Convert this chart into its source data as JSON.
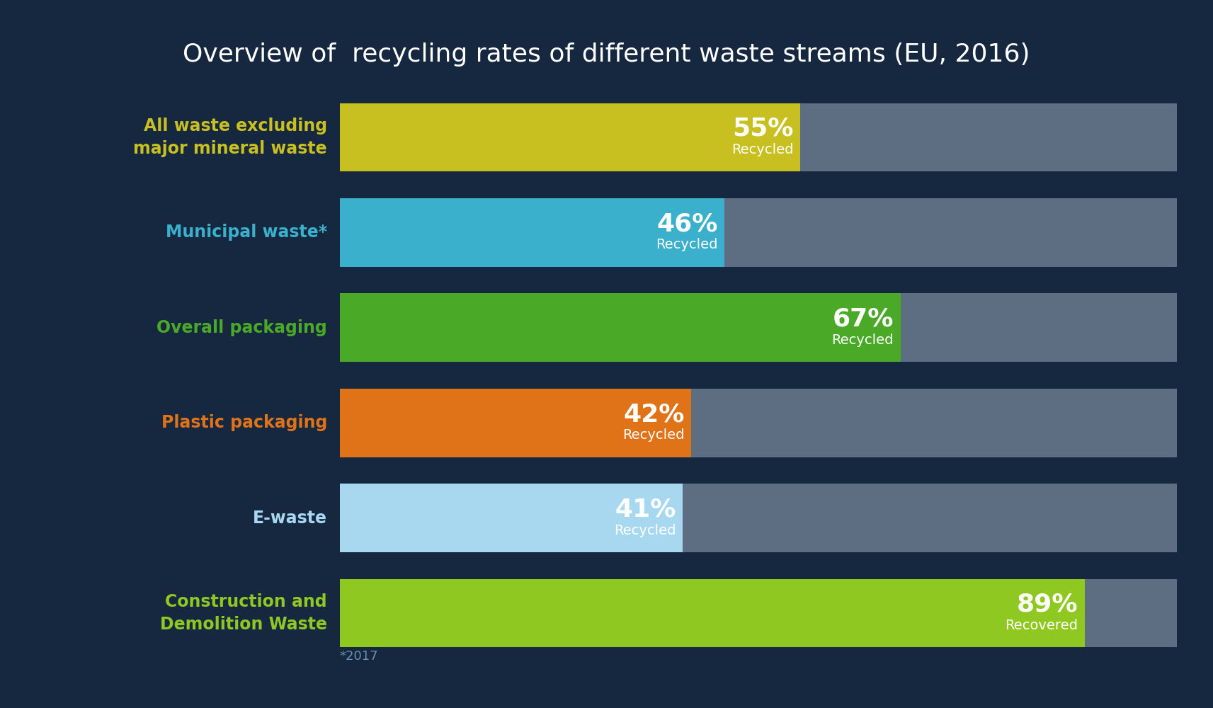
{
  "title": "Overview of  recycling rates of different waste streams (EU, 2016)",
  "background_color": "#162740",
  "bar_background_color": "#5d6e82",
  "title_color": "#ffffff",
  "footnote": "*2017",
  "footnote_color": "#6a8faf",
  "categories": [
    "All waste excluding\nmajor mineral waste",
    "Municipal waste*",
    "Overall packaging",
    "Plastic packaging",
    "E-waste",
    "Construction and\nDemolition Waste"
  ],
  "label_colors": [
    "#c8c020",
    "#3ab0cc",
    "#4aaa28",
    "#e07218",
    "#a8d8f0",
    "#8ec820"
  ],
  "values": [
    55,
    46,
    67,
    42,
    41,
    89
  ],
  "bar_colors": [
    "#c8c020",
    "#3ab0cc",
    "#4aaa28",
    "#e07218",
    "#a8d8f0",
    "#8ec820"
  ],
  "sublabels": [
    "Recycled",
    "Recycled",
    "Recycled",
    "Recycled",
    "Recycled",
    "Recovered"
  ],
  "max_value": 100,
  "bar_height": 0.72,
  "label_fontsize": 17,
  "pct_fontsize": 26,
  "sub_fontsize": 14,
  "title_fontsize": 26
}
